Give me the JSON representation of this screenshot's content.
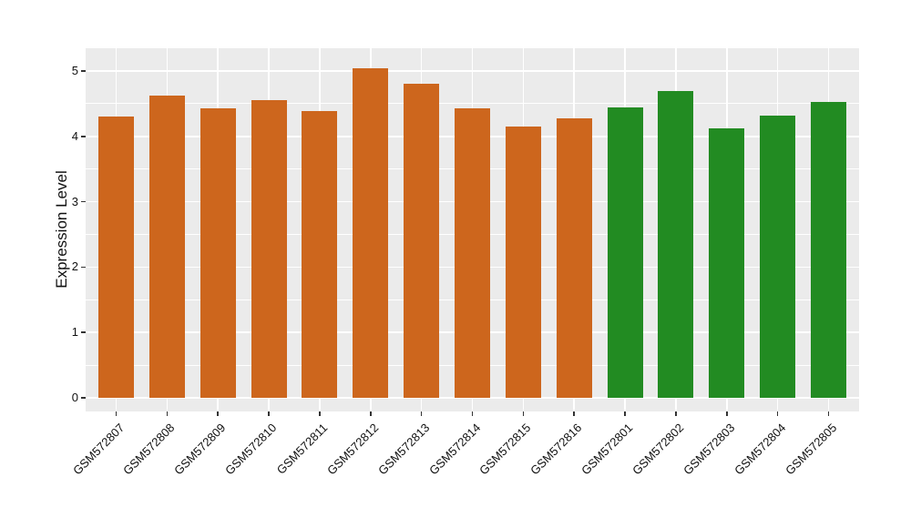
{
  "figure_style": {
    "background": "#FFFFFF",
    "panel_background": "#EBEBEB",
    "gridline_color": "#FFFFFF",
    "axis_text_color": "#111111",
    "tick_color": "#333333"
  },
  "chart_data": {
    "type": "bar",
    "title": "",
    "xlabel": "",
    "ylabel": "Expression Level",
    "categories": [
      "GSM572807",
      "GSM572808",
      "GSM572809",
      "GSM572810",
      "GSM572811",
      "GSM572812",
      "GSM572813",
      "GSM572814",
      "GSM572815",
      "GSM572816",
      "GSM572801",
      "GSM572802",
      "GSM572803",
      "GSM572804",
      "GSM572805"
    ],
    "values": [
      4.31,
      4.62,
      4.43,
      4.55,
      4.39,
      5.04,
      4.8,
      4.43,
      4.15,
      4.27,
      4.45,
      4.69,
      4.12,
      4.32,
      4.52
    ],
    "groups": [
      "orange",
      "orange",
      "orange",
      "orange",
      "orange",
      "orange",
      "orange",
      "orange",
      "orange",
      "orange",
      "green",
      "green",
      "green",
      "green",
      "green"
    ],
    "group_colors": {
      "orange": "#CD661D",
      "green": "#228B22"
    },
    "yticks": [
      "0",
      "1",
      "2",
      "3",
      "4",
      "5"
    ],
    "ytick_values": [
      0,
      1,
      2,
      3,
      4,
      5
    ],
    "minor_gridlines": [
      0.5,
      1.5,
      2.5,
      3.5,
      4.5
    ],
    "ylim": [
      0,
      5
    ],
    "grid": true,
    "legend": "none",
    "x_tick_rotation": 45
  }
}
